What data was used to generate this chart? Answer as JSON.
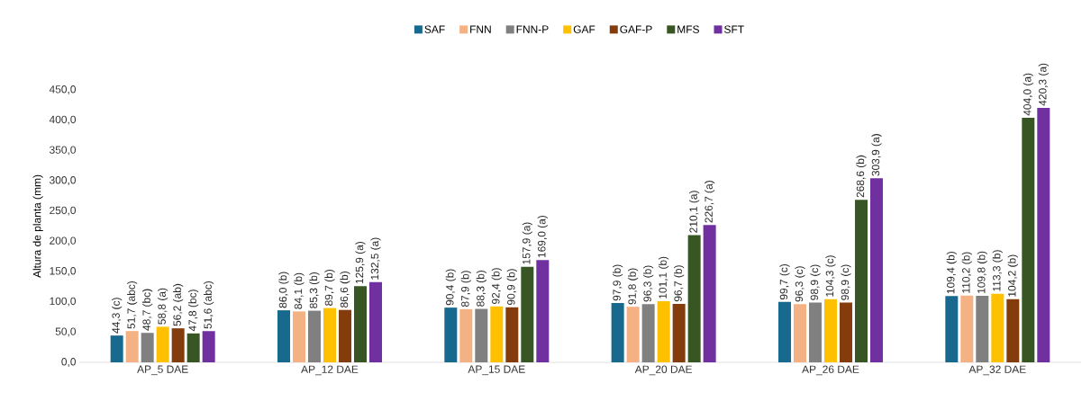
{
  "chart_data": {
    "type": "bar",
    "ylabel": "Altura de planta (mm)",
    "legend": "top",
    "categories": [
      "AP_5 DAE",
      "AP_12 DAE",
      "AP_15 DAE",
      "AP_20 DAE",
      "AP_26 DAE",
      "AP_32 DAE"
    ],
    "ylim": [
      0,
      450
    ],
    "yticks": [
      {
        "value": 0,
        "label": "0,0"
      },
      {
        "value": 50,
        "label": "50,0"
      },
      {
        "value": 100,
        "label": "100,0"
      },
      {
        "value": 150,
        "label": "150,0"
      },
      {
        "value": 200,
        "label": "200,0"
      },
      {
        "value": 250,
        "label": "250,0"
      },
      {
        "value": 300,
        "label": "300,0"
      },
      {
        "value": 350,
        "label": "350,0"
      },
      {
        "value": 400,
        "label": "400,0"
      },
      {
        "value": 450,
        "label": "450,0"
      }
    ],
    "series": [
      {
        "name": "SAF",
        "color": "#18698e",
        "values": [
          44.3,
          86.0,
          90.4,
          97.9,
          99.7,
          109.4
        ],
        "value_labels": [
          "44,3 (c)",
          "86,0 (b)",
          "90,4 (b)",
          "97,9 (b)",
          "99,7 (c)",
          "109,4 (b)"
        ]
      },
      {
        "name": "FNN",
        "color": "#f4b183",
        "values": [
          51.7,
          84.1,
          87.9,
          91.8,
          96.3,
          110.2
        ],
        "value_labels": [
          "51,7 (abc)",
          "84,1 (b)",
          "87,9 (b)",
          "91,8 (b)",
          "96,3 (c)",
          "110,2 (b)"
        ]
      },
      {
        "name": "FNN-P",
        "color": "#808080",
        "values": [
          48.7,
          85.3,
          88.3,
          96.3,
          98.9,
          109.8
        ],
        "value_labels": [
          "48,7 (bc)",
          "85,3 (b)",
          "88,3 (b)",
          "96,3 (b)",
          "98,9 (c)",
          "109,8 (b)"
        ]
      },
      {
        "name": "GAF",
        "color": "#ffc000",
        "values": [
          58.8,
          89.7,
          92.4,
          101.1,
          104.3,
          113.3
        ],
        "value_labels": [
          "58,8 (a)",
          "89,7 (b)",
          "92,4 (b)",
          "101,1 (b)",
          "104,3 (c)",
          "113,3 (b)"
        ]
      },
      {
        "name": "GAF-P",
        "color": "#843c0c",
        "values": [
          56.2,
          86.6,
          90.9,
          96.7,
          98.9,
          104.2
        ],
        "value_labels": [
          "56,2 (ab)",
          "86,6 (b)",
          "90,9 (b)",
          "96,7 (b)",
          "98,9 (c)",
          "104,2 (b)"
        ]
      },
      {
        "name": "MFS",
        "color": "#375623",
        "values": [
          47.8,
          125.9,
          157.9,
          210.1,
          268.6,
          404.0
        ],
        "value_labels": [
          "47,8 (bc)",
          "125,9 (a)",
          "157,9 (a)",
          "210,1 (a)",
          "268,6 (b)",
          "404,0 (a)"
        ]
      },
      {
        "name": "SFT",
        "color": "#7030a0",
        "values": [
          51.6,
          132.5,
          169.0,
          226.7,
          303.9,
          420.3
        ],
        "value_labels": [
          "51,6 (abc)",
          "132,5 (a)",
          "169,0 (a)",
          "226,7 (a)",
          "303,9 (a)",
          "420,3 (a)"
        ]
      }
    ]
  }
}
